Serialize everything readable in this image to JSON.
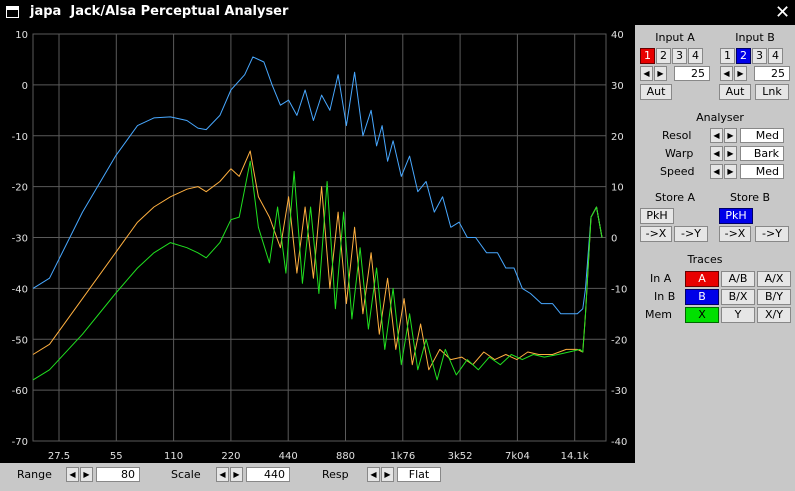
{
  "window": {
    "title": "japa  Jack/Alsa Perceptual Analyser"
  },
  "colors": {
    "trace_a": "#ffb040",
    "trace_b": "#20e020",
    "trace_x": "#48a8ff",
    "grid": "#5a5a5a",
    "axis_text": "#e0e0e0"
  },
  "chart_data": {
    "type": "line",
    "x_ticks": [
      "27.5",
      "55",
      "110",
      "220",
      "440",
      "880",
      "1k76",
      "3k52",
      "7k04",
      "14.1k"
    ],
    "y_left": {
      "ticks": [
        10,
        0,
        -10,
        -20,
        -30,
        -40,
        -50,
        -60,
        -70
      ],
      "range": [
        -70,
        10
      ]
    },
    "y_right": {
      "ticks": [
        40,
        30,
        20,
        10,
        0,
        -10,
        -20,
        -30,
        -40
      ],
      "range": [
        -40,
        40
      ]
    },
    "grid": true,
    "series": [
      {
        "key": "x",
        "color": "#48a8ff",
        "points": [
          [
            0,
            -40
          ],
          [
            0.3,
            -38
          ],
          [
            0.9,
            -25
          ],
          [
            1.5,
            -14
          ],
          [
            1.9,
            -8
          ],
          [
            2.2,
            -6.5
          ],
          [
            2.5,
            -6.3
          ],
          [
            2.8,
            -7
          ],
          [
            3.0,
            -8.5
          ],
          [
            3.15,
            -8.8
          ],
          [
            3.4,
            -6
          ],
          [
            3.6,
            -1
          ],
          [
            3.85,
            2
          ],
          [
            4.0,
            5.5
          ],
          [
            4.2,
            4.5
          ],
          [
            4.35,
            0
          ],
          [
            4.5,
            -4
          ],
          [
            4.65,
            -3
          ],
          [
            4.8,
            -6
          ],
          [
            4.95,
            -1
          ],
          [
            5.1,
            -7
          ],
          [
            5.25,
            -2
          ],
          [
            5.4,
            -5
          ],
          [
            5.55,
            2
          ],
          [
            5.7,
            -8
          ],
          [
            5.85,
            2.5
          ],
          [
            6.0,
            -10
          ],
          [
            6.15,
            -5
          ],
          [
            6.25,
            -12
          ],
          [
            6.35,
            -8
          ],
          [
            6.45,
            -15
          ],
          [
            6.55,
            -11
          ],
          [
            6.7,
            -18
          ],
          [
            6.85,
            -14
          ],
          [
            7.0,
            -21
          ],
          [
            7.15,
            -19
          ],
          [
            7.3,
            -25
          ],
          [
            7.45,
            -22
          ],
          [
            7.6,
            -28
          ],
          [
            7.75,
            -27
          ],
          [
            7.9,
            -30
          ],
          [
            8.05,
            -30
          ],
          [
            8.25,
            -33
          ],
          [
            8.45,
            -33
          ],
          [
            8.6,
            -36
          ],
          [
            8.75,
            -36
          ],
          [
            8.9,
            -40
          ],
          [
            9.05,
            -41
          ],
          [
            9.25,
            -43
          ],
          [
            9.45,
            -43
          ],
          [
            9.6,
            -45
          ],
          [
            9.9,
            -45
          ],
          [
            10.0,
            -44
          ],
          [
            10.05,
            -40
          ],
          [
            10.15,
            -26
          ],
          [
            10.25,
            -24
          ],
          [
            10.35,
            -30
          ]
        ]
      },
      {
        "key": "a",
        "color": "#ffb040",
        "points": [
          [
            0,
            -53
          ],
          [
            0.3,
            -51
          ],
          [
            0.9,
            -42
          ],
          [
            1.5,
            -33
          ],
          [
            1.9,
            -27
          ],
          [
            2.2,
            -24
          ],
          [
            2.5,
            -22
          ],
          [
            2.8,
            -20.5
          ],
          [
            3.0,
            -20
          ],
          [
            3.15,
            -21
          ],
          [
            3.4,
            -19
          ],
          [
            3.6,
            -16.5
          ],
          [
            3.75,
            -18
          ],
          [
            3.95,
            -13
          ],
          [
            4.1,
            -22
          ],
          [
            4.3,
            -26
          ],
          [
            4.5,
            -32
          ],
          [
            4.65,
            -22
          ],
          [
            4.8,
            -37
          ],
          [
            4.95,
            -24
          ],
          [
            5.1,
            -38
          ],
          [
            5.25,
            -20
          ],
          [
            5.4,
            -40
          ],
          [
            5.55,
            -25
          ],
          [
            5.7,
            -43
          ],
          [
            5.85,
            -28
          ],
          [
            6.0,
            -45
          ],
          [
            6.15,
            -33
          ],
          [
            6.3,
            -49
          ],
          [
            6.45,
            -38
          ],
          [
            6.6,
            -52
          ],
          [
            6.75,
            -42
          ],
          [
            6.9,
            -55
          ],
          [
            7.05,
            -47
          ],
          [
            7.2,
            -56
          ],
          [
            7.4,
            -52
          ],
          [
            7.6,
            -54
          ],
          [
            7.8,
            -53.5
          ],
          [
            8.0,
            -55
          ],
          [
            8.2,
            -52.5
          ],
          [
            8.4,
            -54
          ],
          [
            8.6,
            -53
          ],
          [
            8.8,
            -54
          ],
          [
            9.0,
            -52.5
          ],
          [
            9.2,
            -53
          ],
          [
            9.45,
            -53
          ],
          [
            9.7,
            -52
          ],
          [
            9.9,
            -52
          ],
          [
            10.0,
            -52.5
          ],
          [
            10.05,
            -45
          ],
          [
            10.15,
            -26
          ],
          [
            10.25,
            -24
          ],
          [
            10.35,
            -30
          ]
        ]
      },
      {
        "key": "b",
        "color": "#20e020",
        "points": [
          [
            0,
            -58
          ],
          [
            0.3,
            -56
          ],
          [
            0.9,
            -49
          ],
          [
            1.5,
            -41
          ],
          [
            1.9,
            -36
          ],
          [
            2.2,
            -33
          ],
          [
            2.5,
            -31
          ],
          [
            2.8,
            -32
          ],
          [
            3.0,
            -33
          ],
          [
            3.15,
            -34
          ],
          [
            3.4,
            -31
          ],
          [
            3.6,
            -26.5
          ],
          [
            3.75,
            -26
          ],
          [
            3.95,
            -15
          ],
          [
            4.1,
            -28
          ],
          [
            4.3,
            -35
          ],
          [
            4.45,
            -24
          ],
          [
            4.6,
            -37
          ],
          [
            4.75,
            -17
          ],
          [
            4.9,
            -39
          ],
          [
            5.05,
            -24
          ],
          [
            5.2,
            -41
          ],
          [
            5.35,
            -19
          ],
          [
            5.5,
            -44
          ],
          [
            5.65,
            -25
          ],
          [
            5.8,
            -46
          ],
          [
            5.95,
            -32
          ],
          [
            6.1,
            -48
          ],
          [
            6.25,
            -36
          ],
          [
            6.4,
            -52
          ],
          [
            6.55,
            -40
          ],
          [
            6.7,
            -55
          ],
          [
            6.85,
            -45
          ],
          [
            7.0,
            -56
          ],
          [
            7.15,
            -50
          ],
          [
            7.35,
            -58
          ],
          [
            7.5,
            -52
          ],
          [
            7.7,
            -57
          ],
          [
            7.9,
            -54
          ],
          [
            8.1,
            -56
          ],
          [
            8.3,
            -53.5
          ],
          [
            8.5,
            -55
          ],
          [
            8.7,
            -53
          ],
          [
            8.9,
            -54
          ],
          [
            9.1,
            -53
          ],
          [
            9.3,
            -53.5
          ],
          [
            9.55,
            -53
          ],
          [
            9.75,
            -52.5
          ],
          [
            9.95,
            -52
          ],
          [
            10.0,
            -52.5
          ],
          [
            10.05,
            -45
          ],
          [
            10.15,
            -26
          ],
          [
            10.25,
            -24
          ],
          [
            10.35,
            -30
          ]
        ]
      }
    ]
  },
  "bottom": {
    "range_label": "Range",
    "range_value": "80",
    "scale_label": "Scale",
    "scale_value": "440",
    "resp_label": "Resp",
    "resp_value": "Flat"
  },
  "panel": {
    "input_a": {
      "title": "Input A",
      "channels": [
        "1",
        "2",
        "3",
        "4"
      ],
      "value": "25",
      "aut": "Aut"
    },
    "input_b": {
      "title": "Input B",
      "channels": [
        "1",
        "2",
        "3",
        "4"
      ],
      "value": "25",
      "aut": "Aut",
      "lnk": "Lnk"
    },
    "analyser": {
      "title": "Analyser",
      "resol_label": "Resol",
      "resol_value": "Med",
      "warp_label": "Warp",
      "warp_value": "Bark",
      "speed_label": "Speed",
      "speed_value": "Med"
    },
    "store_a": {
      "title": "Store A",
      "pkh": "PkH",
      "to_x": "->X",
      "to_y": "->Y"
    },
    "store_b": {
      "title": "Store B",
      "pkh": "PkH",
      "to_x": "->X",
      "to_y": "->Y"
    },
    "traces": {
      "title": "Traces",
      "in_a": "In A",
      "in_b": "In B",
      "mem": "Mem",
      "a": "A",
      "ab": "A/B",
      "ax": "A/X",
      "b": "B",
      "bx": "B/X",
      "by": "B/Y",
      "x": "X",
      "y": "Y",
      "xy": "X/Y"
    }
  },
  "icons": {
    "window": "window-menu-icon",
    "close": "close-icon",
    "left": "arrow-left-icon",
    "right": "arrow-right-icon"
  }
}
